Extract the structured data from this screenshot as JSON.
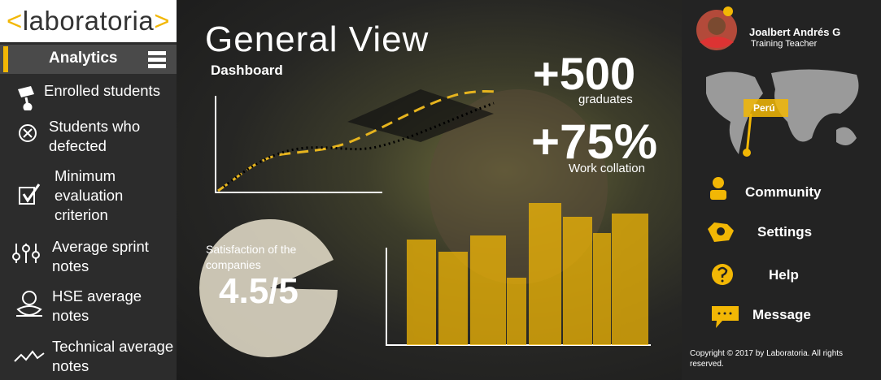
{
  "sidebar": {
    "logo": {
      "open": "<",
      "name": "laboratoria",
      "close": ">"
    },
    "section": "Analytics",
    "items": [
      "Enrolled students",
      "Students who defected",
      "Minimum evaluation criterion",
      "Average sprint notes",
      "HSE average notes",
      "Technical average notes"
    ]
  },
  "main": {
    "title": "General View",
    "subtitle": "Dashboard",
    "graduates": {
      "value": "+500",
      "label": "graduates"
    },
    "collation": {
      "value": "+75%",
      "label": "Work collation"
    },
    "satisfaction": {
      "label": "Satisfaction of the companies",
      "value": "4.5/5"
    }
  },
  "profile": {
    "name": "Joalbert Andrés G",
    "role": "Training Teacher",
    "country": "Perú"
  },
  "menu": [
    "Community",
    "Settings",
    "Help",
    "Message"
  ],
  "footer": "Copyright © 2017 by Laboratoria. All rights reserved."
}
